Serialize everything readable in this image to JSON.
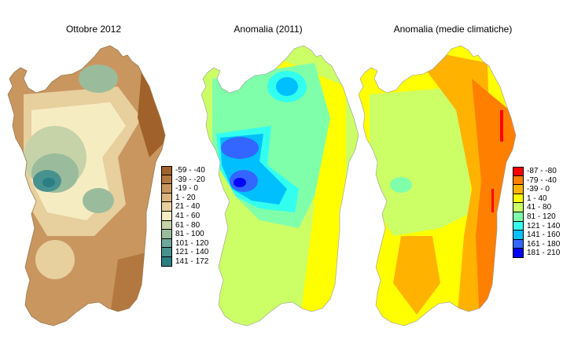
{
  "maps": [
    {
      "id": "ottobre",
      "title": "Ottobre 2012",
      "legend": [
        {
          "label": "-59 - -40",
          "color": "#a0622a"
        },
        {
          "label": "-39 - -20",
          "color": "#b37840"
        },
        {
          "label": "-19 - 0",
          "color": "#c99660"
        },
        {
          "label": "1 - 20",
          "color": "#d9b47e"
        },
        {
          "label": "21 - 40",
          "color": "#e7cf9e"
        },
        {
          "label": "41 - 60",
          "color": "#f6ecc2"
        },
        {
          "label": "61 - 80",
          "color": "#c6d2a8"
        },
        {
          "label": "81 - 100",
          "color": "#9bbc9c"
        },
        {
          "label": "101 - 120",
          "color": "#6fa79b"
        },
        {
          "label": "121 - 140",
          "color": "#47928f"
        },
        {
          "label": "141 - 172",
          "color": "#2a7f85"
        }
      ]
    },
    {
      "id": "anomalia2011",
      "title": "Anomalia (2011)",
      "legend": []
    },
    {
      "id": "medie",
      "title": "Anomalia (medie climatiche)",
      "legend": [
        {
          "label": "-87 - -80",
          "color": "#ff0000"
        },
        {
          "label": "-79 - -40",
          "color": "#ff7f00"
        },
        {
          "label": "-39 - 0",
          "color": "#ffb300"
        },
        {
          "label": "1 - 40",
          "color": "#ffff00"
        },
        {
          "label": "41 - 80",
          "color": "#ccff66"
        },
        {
          "label": "81 - 120",
          "color": "#80ffaa"
        },
        {
          "label": "121 - 140",
          "color": "#33ffee"
        },
        {
          "label": "141 - 160",
          "color": "#00bfff"
        },
        {
          "label": "161 - 180",
          "color": "#3366ff"
        },
        {
          "label": "181 - 210",
          "color": "#0000ff"
        }
      ]
    }
  ],
  "colors": {
    "anomalia2011_ramp": [
      "#ffff00",
      "#ccff66",
      "#80ffaa",
      "#33ffee",
      "#00bfff",
      "#3366ff",
      "#0000ff"
    ]
  }
}
